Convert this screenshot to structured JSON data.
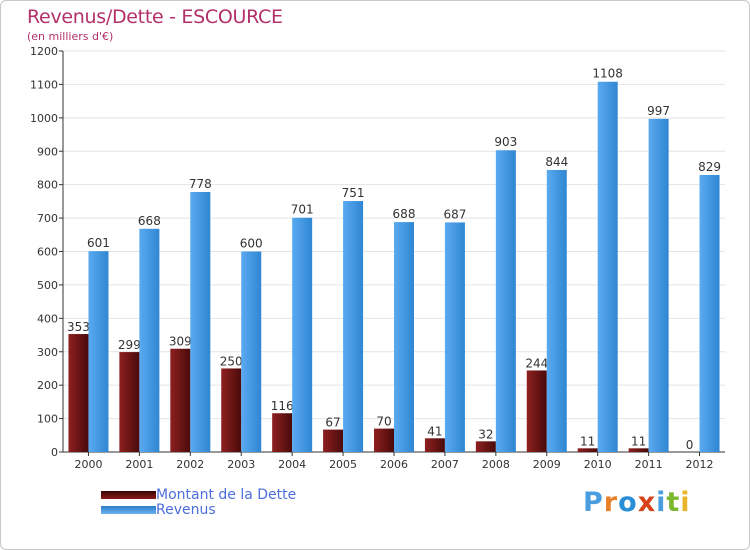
{
  "title": "Revenus/Dette - ESCOURCE",
  "subtitle": "(en milliers d'€)",
  "chart_data": {
    "type": "bar",
    "categories": [
      "2000",
      "2001",
      "2002",
      "2003",
      "2004",
      "2005",
      "2006",
      "2007",
      "2008",
      "2009",
      "2010",
      "2011",
      "2012"
    ],
    "series": [
      {
        "name": "Montant de la Dette",
        "values": [
          353,
          299,
          309,
          250,
          116,
          67,
          70,
          41,
          32,
          244,
          11,
          11,
          0
        ],
        "color": "#7a1414"
      },
      {
        "name": "Revenus",
        "values": [
          601,
          668,
          778,
          600,
          701,
          751,
          688,
          687,
          903,
          844,
          1108,
          997,
          829
        ],
        "color": "#4a9ee0"
      }
    ],
    "ylim": [
      0,
      1200
    ],
    "yticks": [
      0,
      100,
      200,
      300,
      400,
      500,
      600,
      700,
      800,
      900,
      1000,
      1100,
      1200
    ],
    "grid": true,
    "legend_position": "bottom-left"
  },
  "brand": {
    "letters": [
      "P",
      "r",
      "o",
      "x",
      "i",
      "t",
      "i"
    ],
    "colors": [
      "#4a9ee0",
      "#e8822a",
      "#2a8fd6",
      "#d8421a",
      "#4a9ee0",
      "#7cb82f",
      "#e8b42a"
    ]
  }
}
